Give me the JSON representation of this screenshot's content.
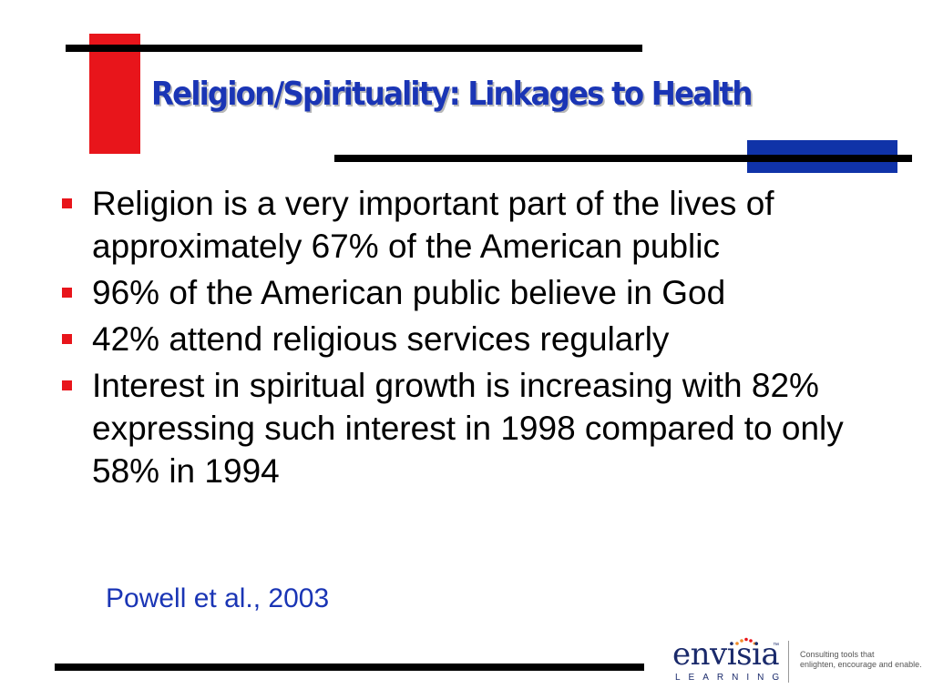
{
  "slide": {
    "title": "Religion/Spirituality: Linkages to Health",
    "bullets": [
      "Religion is a very important part of the lives of approximately 67% of the American public",
      "96% of the American public believe in God",
      "42% attend religious services regularly",
      "Interest in spiritual growth is increasing with 82% expressing such interest in 1998 compared to only 58% in 1994"
    ],
    "citation": "Powell et al., 2003"
  },
  "logo": {
    "name": "envisia",
    "trademark": "™",
    "subtitle": "LEARNING",
    "tagline_line1": "Consulting tools that",
    "tagline_line2": "enlighten, encourage and enable."
  },
  "colors": {
    "accent_red": "#e8151b",
    "accent_blue": "#1033a8",
    "title_blue": "#1a35b5"
  }
}
